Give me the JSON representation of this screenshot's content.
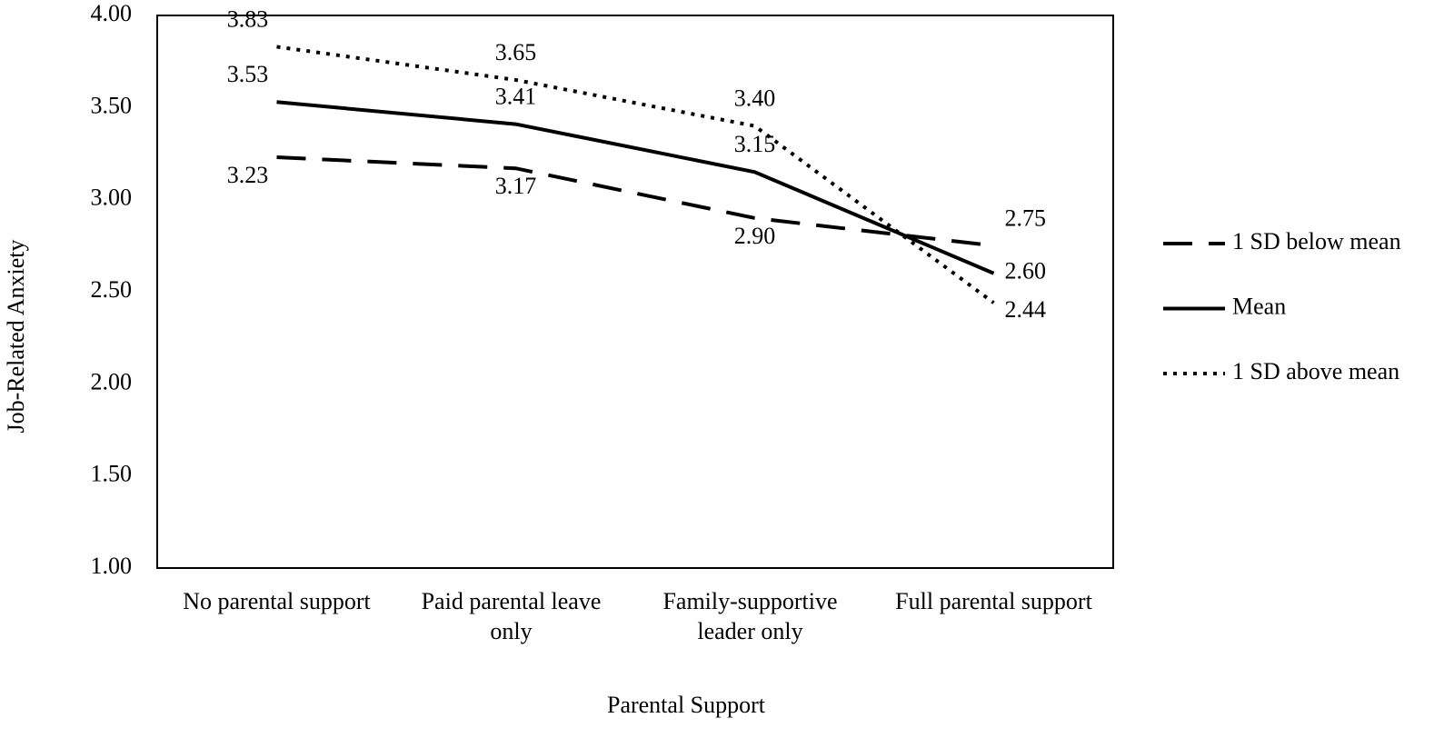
{
  "chart_data": {
    "type": "line",
    "x_label": "Parental Support",
    "y_label": "Job-Related Anxiety",
    "categories": [
      "No parental support",
      "Paid parental leave only",
      "Family-supportive leader only",
      "Full parental support"
    ],
    "series": [
      {
        "name": "1 SD below mean",
        "color": "#000000",
        "style": "dashed",
        "values": [
          3.23,
          3.17,
          2.9,
          2.75
        ],
        "value_labels": [
          "3.23",
          "3.17",
          "2.90",
          "2.75"
        ]
      },
      {
        "name": "Mean",
        "color": "#000000",
        "style": "solid",
        "values": [
          3.53,
          3.41,
          3.15,
          2.6
        ],
        "value_labels": [
          "3.53",
          "3.41",
          "3.15",
          "2.60"
        ]
      },
      {
        "name": "1 SD above mean",
        "color": "#000000",
        "style": "dotted",
        "values": [
          3.83,
          3.65,
          3.4,
          2.44
        ],
        "value_labels": [
          "3.83",
          "3.65",
          "3.40",
          "2.44"
        ]
      }
    ],
    "ylim": [
      1,
      4
    ],
    "yticks": [
      {
        "value": 1,
        "label": "1.00"
      },
      {
        "value": 1.5,
        "label": "1.50"
      },
      {
        "value": 2,
        "label": "2.00"
      },
      {
        "value": 2.5,
        "label": "2.50"
      },
      {
        "value": 3,
        "label": "3.00"
      },
      {
        "value": 3.5,
        "label": "3.50"
      },
      {
        "value": 4,
        "label": "4.00"
      }
    ],
    "legend": "right"
  }
}
